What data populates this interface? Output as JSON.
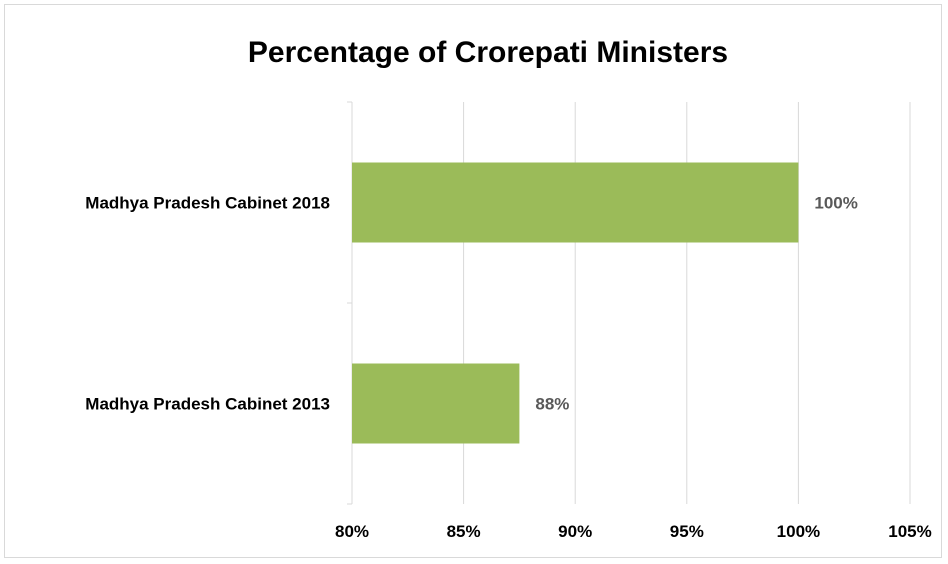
{
  "chart_data": {
    "type": "bar",
    "orientation": "horizontal",
    "title": "Percentage of Crorepati Ministers",
    "categories": [
      "Madhya Pradesh Cabinet 2018",
      "Madhya Pradesh Cabinet 2013"
    ],
    "values": [
      100,
      87.5
    ],
    "data_labels": [
      "100%",
      "88%"
    ],
    "xlim": [
      80,
      105
    ],
    "x_ticks": [
      80,
      85,
      90,
      95,
      100,
      105
    ],
    "x_tick_labels": [
      "80%",
      "85%",
      "90%",
      "95%",
      "100%",
      "105%"
    ],
    "xlabel": "",
    "ylabel": "",
    "grid": "vertical",
    "legend": "none",
    "colors": {
      "bar": "#9bbb59",
      "grid": "#d9d9d9",
      "data_label": "#595959"
    }
  }
}
